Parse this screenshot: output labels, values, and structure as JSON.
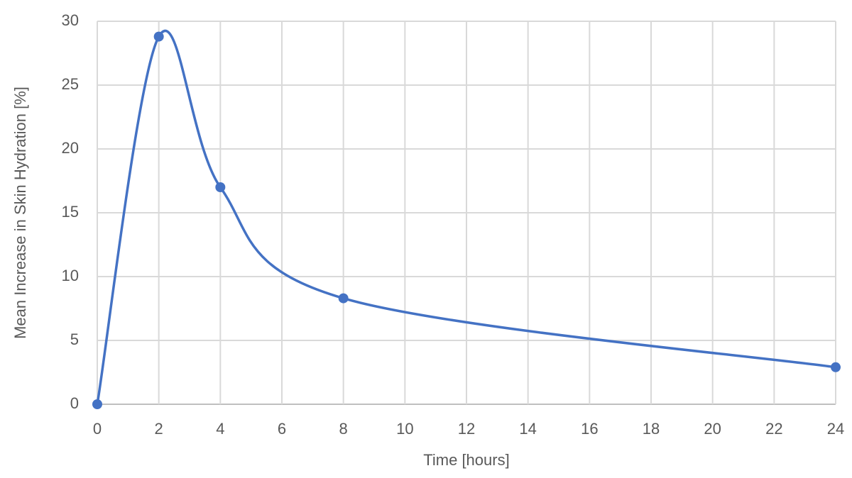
{
  "chart_data": {
    "type": "line",
    "smooth": true,
    "x_label": "Time [hours]",
    "y_label": "Mean Increase in Skin Hydration [%]",
    "x": [
      0,
      2,
      4,
      8,
      24
    ],
    "values": [
      0,
      28.8,
      17,
      8.3,
      2.9
    ],
    "color": "#4472c4",
    "xlim": [
      0,
      24
    ],
    "xticks": [
      0,
      2,
      4,
      6,
      8,
      10,
      12,
      14,
      16,
      18,
      20,
      22,
      24
    ],
    "ylim": [
      0,
      30
    ],
    "yticks": [
      0,
      5,
      10,
      15,
      20,
      25,
      30
    ],
    "grid": true
  }
}
